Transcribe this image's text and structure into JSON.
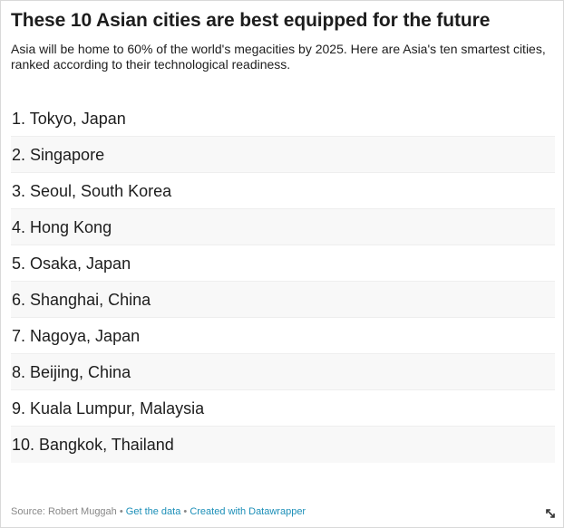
{
  "header": {
    "title": "These 10 Asian cities are best equipped for the future",
    "description": "Asia will be home to 60% of the world's megacities by 2025. Here are Asia's ten smartest cities, ranked according to their technological readiness."
  },
  "cities": [
    "1. Tokyo, Japan",
    "2. Singapore",
    "3. Seoul, South Korea",
    "4. Hong Kong",
    "5. Osaka, Japan",
    "6. Shanghai, China",
    "7. Nagoya, Japan",
    "8. Beijing, China",
    "9. Kuala Lumpur, Malaysia",
    "10. Bangkok, Thailand"
  ],
  "footer": {
    "source": "Source: Robert Muggah",
    "separator": "•",
    "get_data_link": "Get the data",
    "created_with_link": "Created with Datawrapper"
  },
  "colors": {
    "link": "#1c8fb8",
    "row_alt_bg": "#f8f8f8",
    "footer_text": "#888888"
  },
  "icons": {
    "expand": "expand-arrows-icon"
  }
}
